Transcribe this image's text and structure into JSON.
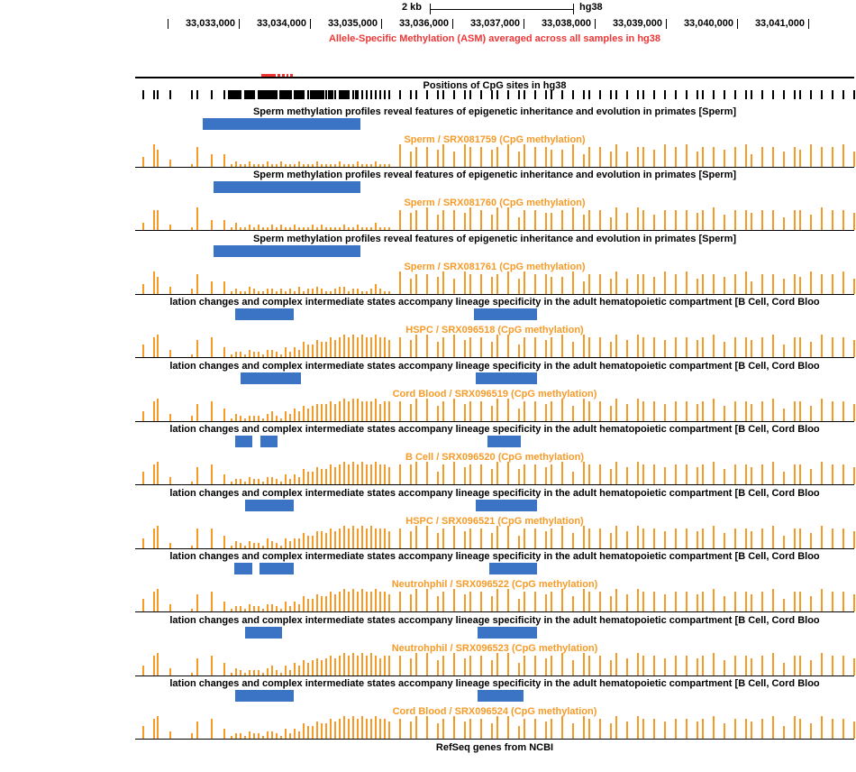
{
  "header": {
    "scale_label": "2 kb",
    "assembly": "hg38",
    "ruler_labels": [
      "33,033,000",
      "33,034,000",
      "33,035,000",
      "33,036,000",
      "33,037,000",
      "33,038,000",
      "33,039,000",
      "33,040,000",
      "33,041,000"
    ],
    "asm_title": "Allele-Specific Methylation (ASM) averaged across all samples in hg38"
  },
  "asm_feature": {
    "segments": [
      [
        140,
        16
      ],
      [
        158,
        3
      ],
      [
        163,
        3
      ],
      [
        168,
        2
      ],
      [
        172,
        3
      ]
    ]
  },
  "cpg": {
    "title": "Positions of CpG sites in hg38",
    "blocks": [
      [
        103,
        14
      ],
      [
        121,
        12
      ],
      [
        137,
        20
      ],
      [
        160,
        14
      ],
      [
        178,
        10
      ],
      [
        194,
        16
      ],
      [
        214,
        6
      ],
      [
        228,
        8
      ],
      [
        244,
        4
      ]
    ]
  },
  "sites": [
    8,
    20,
    24,
    38,
    62,
    68,
    84,
    98,
    106,
    111,
    116,
    121,
    126,
    131,
    136,
    141,
    146,
    151,
    156,
    161,
    166,
    171,
    176,
    181,
    186,
    191,
    196,
    201,
    206,
    211,
    216,
    221,
    226,
    231,
    236,
    241,
    246,
    251,
    256,
    261,
    266,
    271,
    276,
    281,
    293,
    305,
    311,
    323,
    335,
    341,
    353,
    365,
    371,
    383,
    395,
    401,
    413,
    425,
    431,
    443,
    455,
    461,
    473,
    485,
    497,
    503,
    515,
    527,
    533,
    545,
    557,
    563,
    575,
    587,
    599,
    611,
    623,
    629,
    641,
    653,
    665,
    677,
    683,
    695,
    707,
    719,
    731,
    737,
    749,
    761,
    773,
    785,
    797
  ],
  "sperm_study_title": "Sperm methylation profiles reveal features of epigenetic inheritance and evolution in primates [Sperm]",
  "blood_study_title": "lation changes and complex intermediate states accompany lineage specificity in the adult hematopoietic compartment [B Cell, Cord Bloo",
  "tracks": [
    {
      "study": "sperm",
      "label": "Sperm / SRX081759 (CpG methylation)",
      "blue_bars": [
        [
          75,
          175
        ]
      ],
      "bars": "4973185512112111211211121112111121112111211196887969887896988779588696887​98968878958868798896"
    },
    {
      "study": "sperm",
      "label": "Sperm / SRX081760 (CpG methylation)",
      "blue_bars": [
        [
          87,
          163
        ]
      ],
      "bars": "388219441311212112121121112121111211211131118789688798699588778968859798688878968878858869887"
    },
    {
      "study": "sperm",
      "label": "Sperm / SRX081761 (CpG methylation)",
      "blue_bars": [
        [
          87,
          163
        ]
      ],
      "bars": "497328551211321122121213122321123312211242119688796988789698877958869688798968878958868798896"
    },
    {
      "study": "blood",
      "label": "HSPC / SRX096518 (CpG methylation)",
      "blue_bars": [
        [
          111,
          65
        ],
        [
          376,
          70
        ]
      ],
      "bars": "589317841221322133214243655766878989898898878799689788699588789698869798878878968878958869887"
    },
    {
      "study": "blood",
      "label": "Cord Blood / SRX096519 (CpG methylation)",
      "blue_bars": [
        [
          117,
          67
        ],
        [
          378,
          68
        ]
      ],
      "bars": "489327851321222134214354656777878989988897888799689788699588789698869798878878968878958869887"
    },
    {
      "study": "blood",
      "label": "B Cell / SRX096520 (CpG methylation)",
      "blue_bars": [
        [
          111,
          19
        ],
        [
          139,
          19
        ],
        [
          391,
          37
        ]
      ],
      "bars": "589317841221322133214243655766878989898898878899589788699688789598869798878878968878958869887"
    },
    {
      "study": "blood",
      "label": "HSPC / SRX096521 (CpG methylation)",
      "blue_bars": [
        [
          122,
          54
        ],
        [
          378,
          68
        ]
      ],
      "bars": "489218851321322143214344655776878989898988878799689788699588789698869798878878968878958869887"
    },
    {
      "study": "blood",
      "label": "Neutrohphil / SRX096522 (CpG methylation)",
      "blue_bars": [
        [
          110,
          20
        ],
        [
          138,
          38
        ],
        [
          393,
          53
        ]
      ],
      "bars": "589317841221322133214243655766878989898898878799689788699588789698869798878878968878958869887"
    },
    {
      "study": "blood",
      "label": "Neutrohphil / SRX096523 (CpG methylation)",
      "blue_bars": [
        [
          122,
          41
        ],
        [
          380,
          66
        ]
      ],
      "bars": "489317851321222134214254656767878989898987888799689788699588789698869798878878968878958869887"
    },
    {
      "study": "blood",
      "label": "Cord Blood / SRX096524 (CpG methylation)",
      "blue_bars": [
        [
          111,
          65
        ],
        [
          380,
          51
        ]
      ],
      "bars": "589327841221322133214243655766878989898898878799689788699588789698869798878878968878959869887"
    }
  ],
  "footer": {
    "refseq": "RefSeq genes from NCBI"
  },
  "colors": {
    "orange": "#F79B28",
    "blue": "#3B74C4",
    "red": "#EE3636",
    "black": "#000000"
  }
}
